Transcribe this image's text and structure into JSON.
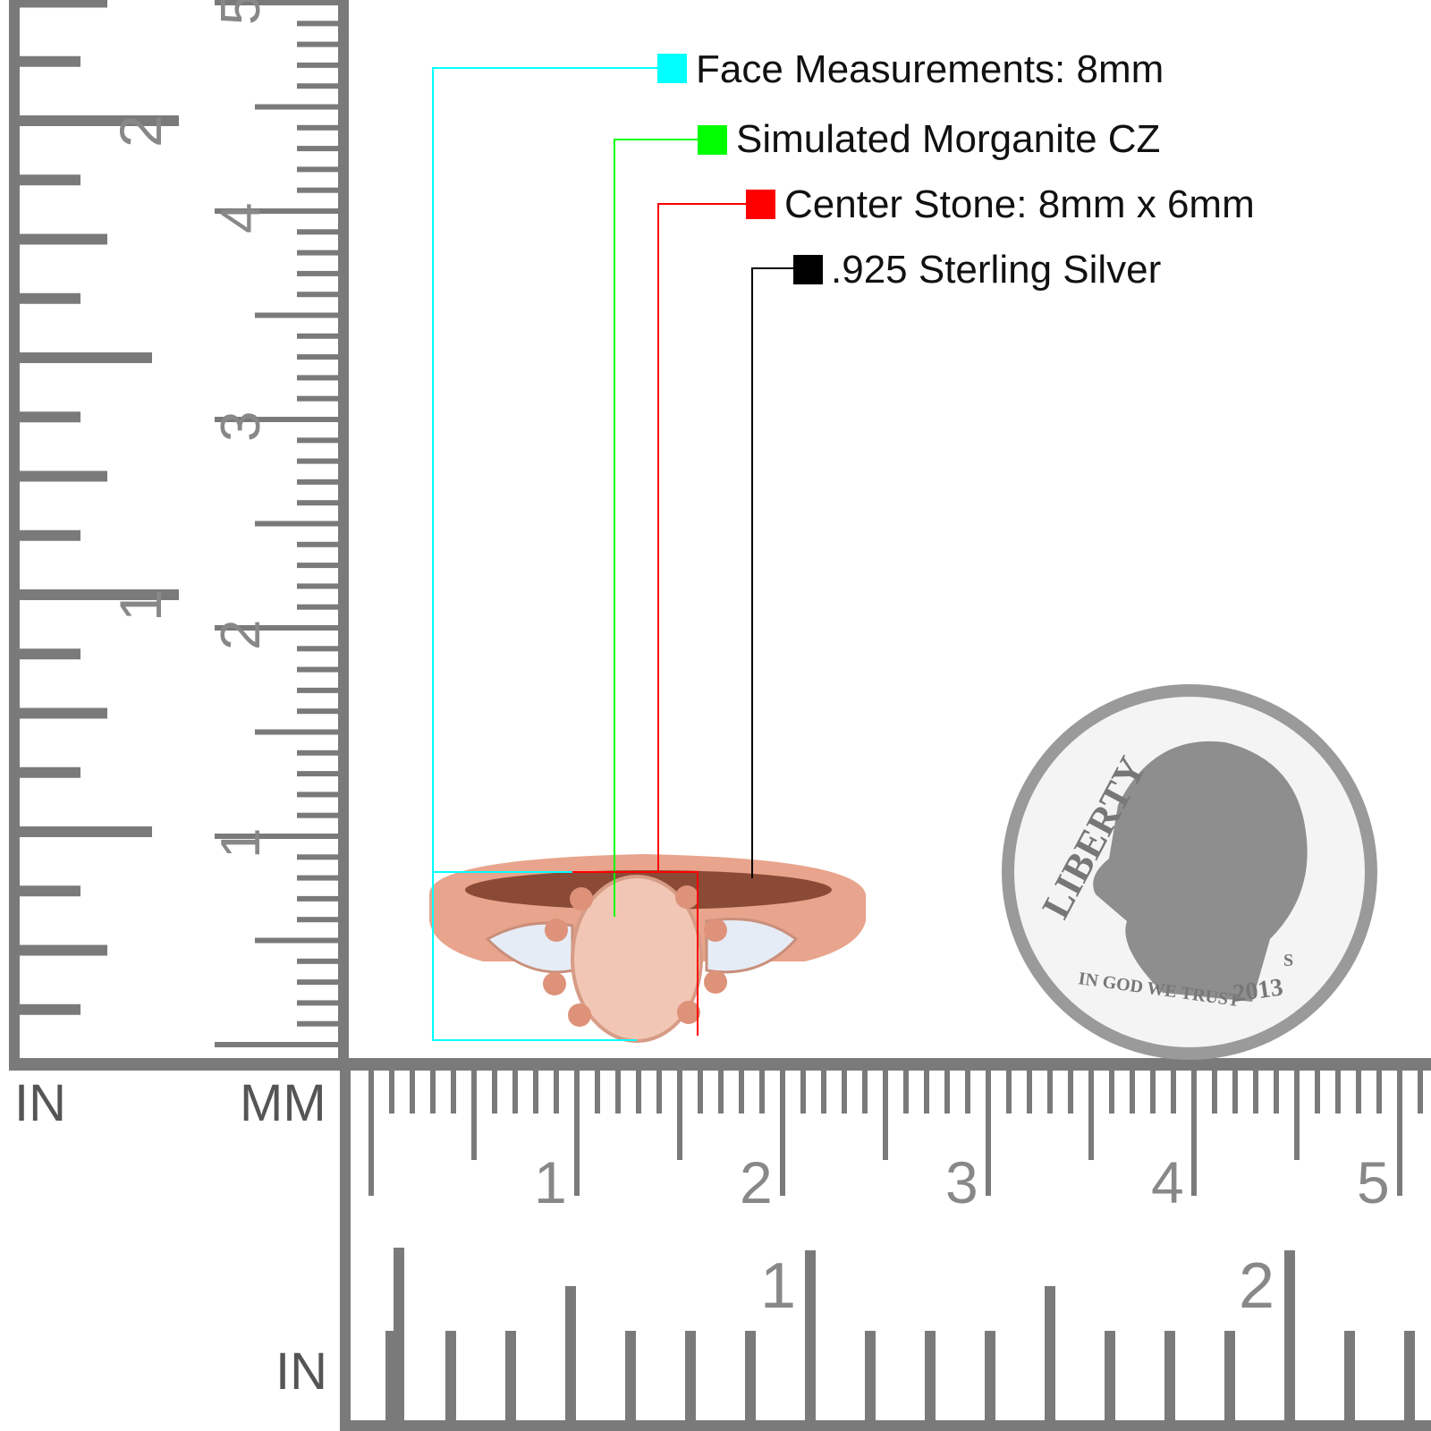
{
  "legend": [
    {
      "label": "Face Measurements: 8mm",
      "color": "#00ffff"
    },
    {
      "label": "Simulated Morganite CZ",
      "color": "#00ff00"
    },
    {
      "label": "Center Stone: 8mm x 6mm",
      "color": "#ff0000"
    },
    {
      "label": ".925 Sterling Silver",
      "color": "#000000"
    }
  ],
  "rulers": {
    "left_in_label": "IN",
    "left_mm_label": "MM",
    "bottom_in_label": "IN",
    "mm_numbers": [
      "1",
      "2",
      "3",
      "4",
      "5"
    ],
    "in_numbers": [
      "1",
      "2"
    ],
    "color": "#7a7a7a"
  },
  "ring": {
    "metal_color": "#e8a48c",
    "center_stone_color": "#f2c6b4",
    "side_stone_color": "#e6ecf6"
  },
  "coin": {
    "legend": "LIBERTY",
    "motto": "IN GOD WE TRUST",
    "year": "2013",
    "mint_mark": "S"
  }
}
